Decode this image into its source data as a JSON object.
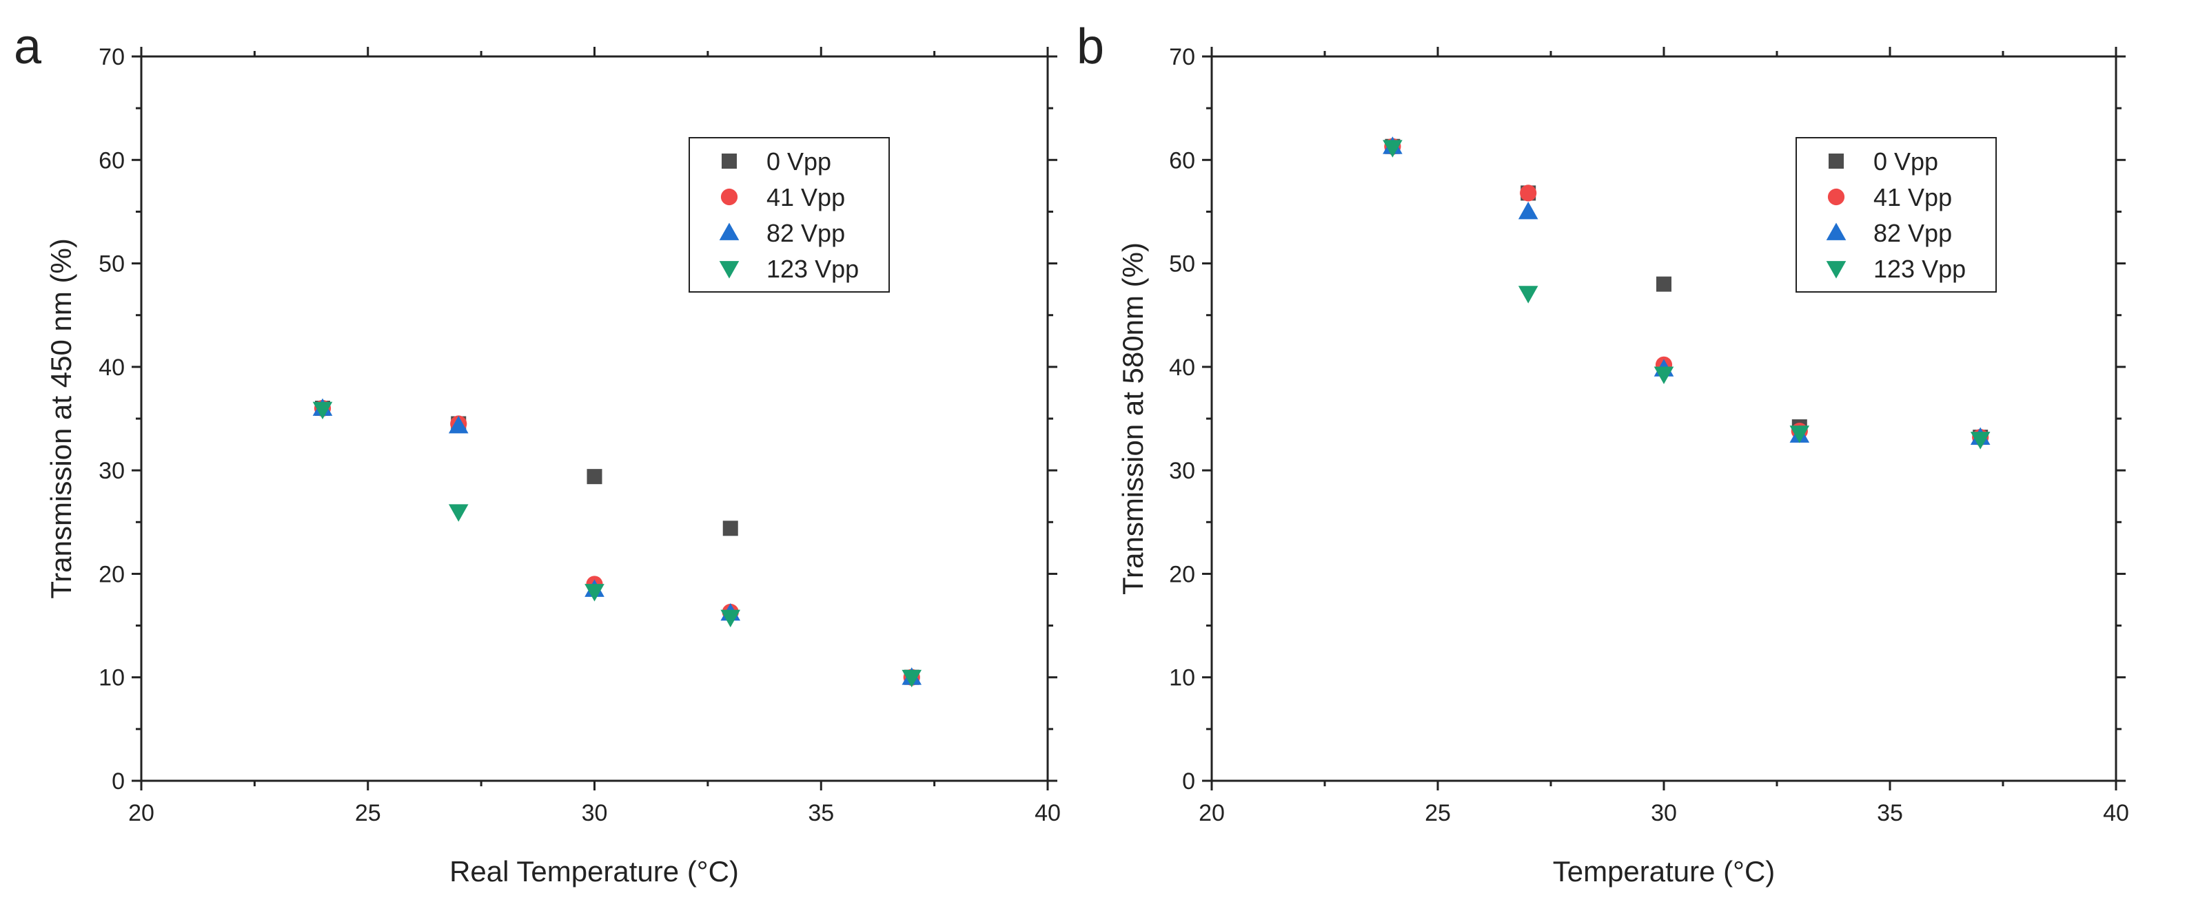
{
  "chart_data": [
    {
      "panel": "a",
      "type": "scatter",
      "xlabel": "Real Temperature (°C)",
      "ylabel": "Transmission at 450 nm (%)",
      "xlim": [
        20,
        40
      ],
      "ylim": [
        0,
        70
      ],
      "xticks": [
        20,
        25,
        30,
        35,
        40
      ],
      "yticks": [
        0,
        10,
        20,
        30,
        40,
        50,
        60,
        70
      ],
      "x": [
        24,
        27,
        30,
        33,
        37
      ],
      "legend_position": "top-right",
      "series": [
        {
          "name": "0 Vpp",
          "marker": "square",
          "color": "#4d4d4d",
          "values": [
            36.0,
            34.5,
            29.4,
            24.4,
            10.0
          ]
        },
        {
          "name": "41 Vpp",
          "marker": "circle",
          "color": "#f04848",
          "values": [
            36.0,
            34.5,
            19.0,
            16.3,
            10.0
          ]
        },
        {
          "name": "82 Vpp",
          "marker": "triangle-up",
          "color": "#2070d0",
          "values": [
            36.0,
            34.3,
            18.5,
            16.2,
            10.0
          ]
        },
        {
          "name": "123 Vpp",
          "marker": "triangle-down",
          "color": "#1aa070",
          "values": [
            35.9,
            26.0,
            18.3,
            15.8,
            10.0
          ]
        }
      ]
    },
    {
      "panel": "b",
      "type": "scatter",
      "xlabel": "Temperature (°C)",
      "ylabel": "Transmission at 580nm (%)",
      "xlim": [
        20,
        40
      ],
      "ylim": [
        0,
        70
      ],
      "xticks": [
        20,
        25,
        30,
        35,
        40
      ],
      "yticks": [
        0,
        10,
        20,
        30,
        40,
        50,
        60,
        70
      ],
      "x": [
        24,
        27,
        30,
        33,
        37
      ],
      "legend_position": "top-right",
      "series": [
        {
          "name": "0 Vpp",
          "marker": "square",
          "color": "#4d4d4d",
          "values": [
            61.3,
            56.8,
            48.0,
            34.2,
            33.2
          ]
        },
        {
          "name": "41 Vpp",
          "marker": "circle",
          "color": "#f04848",
          "values": [
            61.3,
            56.8,
            40.2,
            33.8,
            33.2
          ]
        },
        {
          "name": "82 Vpp",
          "marker": "triangle-up",
          "color": "#2070d0",
          "values": [
            61.3,
            55.0,
            39.8,
            33.4,
            33.2
          ]
        },
        {
          "name": "123 Vpp",
          "marker": "triangle-down",
          "color": "#1aa070",
          "values": [
            61.2,
            47.1,
            39.3,
            33.6,
            33.0
          ]
        }
      ]
    }
  ]
}
